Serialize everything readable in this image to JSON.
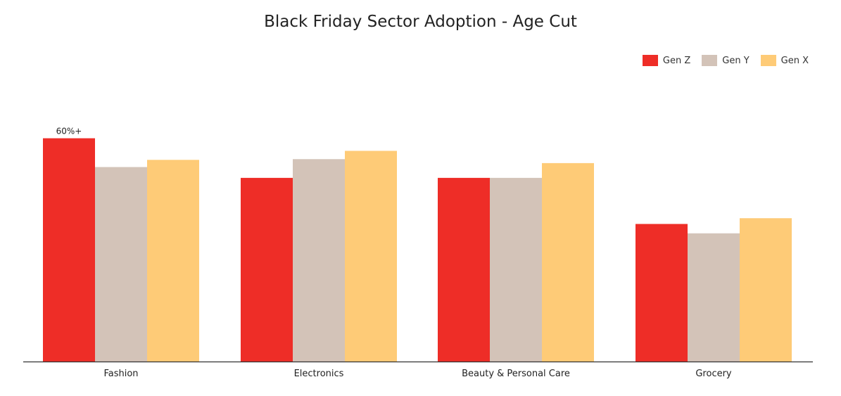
{
  "chart_data": {
    "type": "bar",
    "title": "Black Friday Sector Adoption - Age Cut",
    "categories": [
      "Fashion",
      "Electronics",
      "Beauty & Personal Care",
      "Grocery"
    ],
    "series": [
      {
        "name": "Gen Z",
        "color": "#ee2d27",
        "values": [
          62,
          51,
          51,
          38.2
        ]
      },
      {
        "name": "Gen Y",
        "color": "#d3c3b8",
        "values": [
          54,
          56.2,
          51,
          35.6
        ]
      },
      {
        "name": "Gen X",
        "color": "#fecb77",
        "values": [
          56,
          58.5,
          55.1,
          39.8
        ]
      }
    ],
    "ylim": [
      0,
      100
    ],
    "grid": false,
    "legend_position": "top-right",
    "annotations": [
      {
        "series": 0,
        "category": 0,
        "text": "60%+"
      }
    ],
    "xlabel": "",
    "ylabel": ""
  }
}
